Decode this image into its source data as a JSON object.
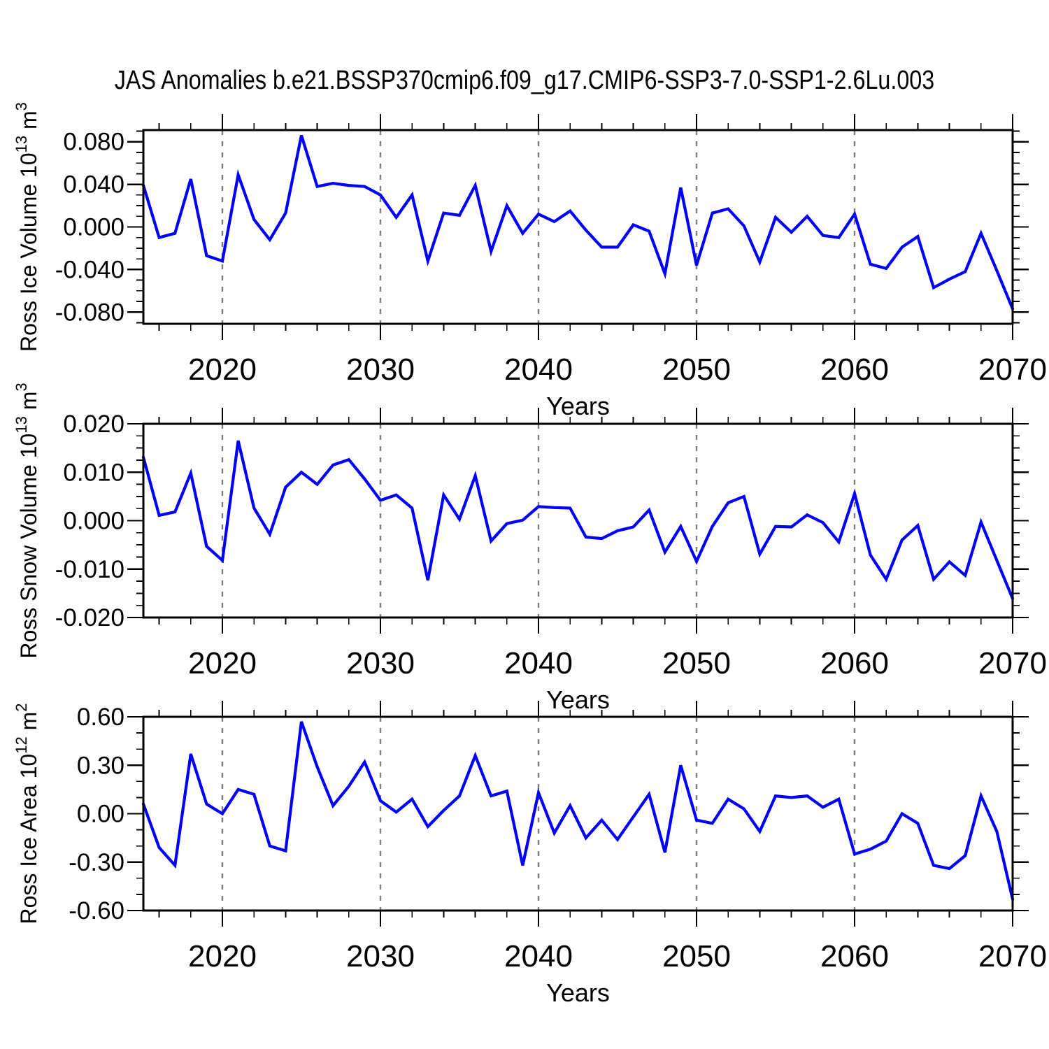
{
  "chart_data": {
    "type": "line",
    "title": "JAS Anomalies b.e21.BSSP370cmip6.f09_g17.CMIP6-SSP3-7.0-SSP1-2.6Lu.003",
    "xlabel": "Years",
    "legend": "none",
    "grid": "dashed vertical gridlines at decades",
    "line_color": "#0000ff",
    "grid_color": "#7f7f7f",
    "axis_color": "#000000",
    "xlim": [
      2015,
      2070
    ],
    "x_major_ticks": [
      2020,
      2030,
      2040,
      2050,
      2060,
      2070
    ],
    "x_tick_labels": [
      "2020",
      "2030",
      "2040",
      "2050",
      "2060",
      "2070"
    ],
    "gridline_years": [
      2020,
      2030,
      2040,
      2050,
      2060
    ],
    "x_minor_step": 2,
    "years": [
      2015,
      2016,
      2017,
      2018,
      2019,
      2020,
      2021,
      2022,
      2023,
      2024,
      2025,
      2026,
      2027,
      2028,
      2029,
      2030,
      2031,
      2032,
      2033,
      2034,
      2035,
      2036,
      2037,
      2038,
      2039,
      2040,
      2041,
      2042,
      2043,
      2044,
      2045,
      2046,
      2047,
      2048,
      2049,
      2050,
      2051,
      2052,
      2053,
      2054,
      2055,
      2056,
      2057,
      2058,
      2059,
      2060,
      2061,
      2062,
      2063,
      2064,
      2065,
      2066,
      2067,
      2068,
      2069,
      2070
    ],
    "panels": [
      {
        "id": "ross-ice-volume",
        "ylabel_text": "Ross Ice Volume 10^13 m^3",
        "ylabel_rich": [
          {
            "t": "Ross Ice Volume 10"
          },
          {
            "sup": "13"
          },
          {
            "t": " m"
          },
          {
            "sup": "3"
          }
        ],
        "ylim": [
          -0.091,
          0.091
        ],
        "yticks": [
          0.08,
          0.04,
          0.0,
          -0.04,
          -0.08
        ],
        "ytick_labels": [
          "0.080",
          "0.040",
          "0.000",
          "-0.040",
          "-0.080"
        ],
        "y_minor_step": 0.01,
        "values": [
          0.039,
          -0.01,
          -0.006,
          0.045,
          -0.027,
          -0.032,
          0.049,
          0.007,
          -0.012,
          0.013,
          0.086,
          0.038,
          0.041,
          0.039,
          0.038,
          0.03,
          0.009,
          0.03,
          -0.032,
          0.013,
          0.011,
          0.039,
          -0.023,
          0.02,
          -0.006,
          0.012,
          0.005,
          0.015,
          -0.003,
          -0.019,
          -0.019,
          0.002,
          -0.004,
          -0.044,
          0.037,
          -0.036,
          0.013,
          0.017,
          0.001,
          -0.033,
          0.009,
          -0.005,
          0.01,
          -0.008,
          -0.01,
          0.012,
          -0.035,
          -0.039,
          -0.019,
          -0.009,
          -0.057,
          -0.049,
          -0.042,
          -0.006,
          -0.041,
          -0.077
        ]
      },
      {
        "id": "ross-snow-volume",
        "ylabel_text": "Ross Snow Volume 10^13 m^3",
        "ylabel_rich": [
          {
            "t": "Ross Snow Volume 10"
          },
          {
            "sup": "13"
          },
          {
            "t": " m"
          },
          {
            "sup": "3"
          }
        ],
        "ylim": [
          -0.02,
          0.02
        ],
        "yticks": [
          0.02,
          0.01,
          0.0,
          -0.01,
          -0.02
        ],
        "ytick_labels": [
          "0.020",
          "0.010",
          "0.000",
          "-0.010",
          "-0.020"
        ],
        "y_minor_step": 0.0025,
        "values": [
          0.0131,
          0.0011,
          0.0018,
          0.0098,
          -0.0053,
          -0.0082,
          0.0165,
          0.0026,
          -0.0028,
          0.0069,
          0.01,
          0.0075,
          0.0115,
          0.0126,
          0.0086,
          0.0042,
          0.0053,
          0.0026,
          -0.0123,
          0.0053,
          0.0003,
          0.0093,
          -0.0042,
          -0.0006,
          0.0001,
          0.0029,
          0.0027,
          0.0026,
          -0.0034,
          -0.0037,
          -0.0021,
          -0.0013,
          0.0022,
          -0.0065,
          -0.0012,
          -0.0084,
          -0.0012,
          0.0037,
          0.005,
          -0.0069,
          -0.0012,
          -0.0013,
          0.0012,
          -0.0004,
          -0.0044,
          0.0056,
          -0.0071,
          -0.0121,
          -0.004,
          -0.001,
          -0.0121,
          -0.0085,
          -0.0113,
          -0.0003,
          -0.0082,
          -0.0161
        ]
      },
      {
        "id": "ross-ice-area",
        "ylabel_text": "Ross Ice Area 10^12 m^2",
        "ylabel_rich": [
          {
            "t": "Ross Ice Area 10"
          },
          {
            "sup": "12"
          },
          {
            "t": " m"
          },
          {
            "sup": "2"
          }
        ],
        "ylim": [
          -0.6,
          0.6
        ],
        "yticks": [
          0.6,
          0.3,
          0.0,
          -0.3,
          -0.6
        ],
        "ytick_labels": [
          "0.60",
          "0.30",
          "0.00",
          "-0.30",
          "-0.60"
        ],
        "y_minor_step": 0.1,
        "values": [
          0.06,
          -0.21,
          -0.32,
          0.37,
          0.06,
          0.0,
          0.15,
          0.12,
          -0.2,
          -0.23,
          0.57,
          0.29,
          0.05,
          0.17,
          0.32,
          0.08,
          0.01,
          0.09,
          -0.08,
          0.02,
          0.11,
          0.36,
          0.11,
          0.14,
          -0.32,
          0.13,
          -0.12,
          0.05,
          -0.15,
          -0.04,
          -0.16,
          -0.02,
          0.12,
          -0.24,
          0.3,
          -0.04,
          -0.06,
          0.09,
          0.03,
          -0.11,
          0.11,
          0.1,
          0.11,
          0.04,
          0.09,
          -0.25,
          -0.22,
          -0.17,
          0.0,
          -0.06,
          -0.32,
          -0.34,
          -0.26,
          0.11,
          -0.11,
          -0.53
        ]
      }
    ]
  }
}
